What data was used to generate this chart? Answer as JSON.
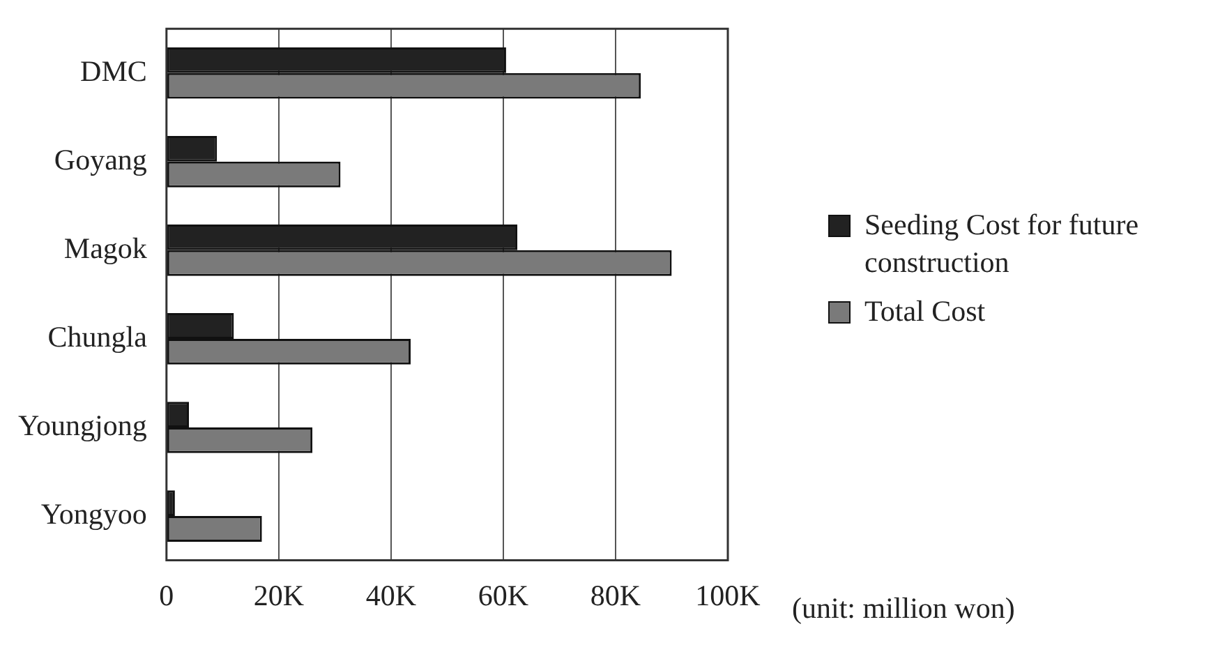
{
  "chart_data": {
    "type": "bar",
    "orientation": "horizontal",
    "categories": [
      "DMC",
      "Goyang",
      "Magok",
      "Chungla",
      "Youngjong",
      "Yongyoo"
    ],
    "series": [
      {
        "name": "Seeding Cost for future construction",
        "color": "#222222",
        "values": [
          60500,
          9000,
          62500,
          12000,
          4000,
          1500
        ]
      },
      {
        "name": "Total Cost",
        "color": "#7a7a7a",
        "values": [
          84500,
          31000,
          90000,
          43500,
          26000,
          17000
        ]
      }
    ],
    "xlim": [
      0,
      100000
    ],
    "xticks": [
      0,
      {
        "value": 20000,
        "label": "20K"
      },
      {
        "value": 40000,
        "label": "40K"
      },
      {
        "value": 60000,
        "label": "60K"
      },
      {
        "value": 80000,
        "label": "80K"
      },
      {
        "value": 100000,
        "label": "100K"
      }
    ],
    "grid": "x",
    "legend": "right",
    "annotations": [
      "(unit: million won)"
    ]
  }
}
